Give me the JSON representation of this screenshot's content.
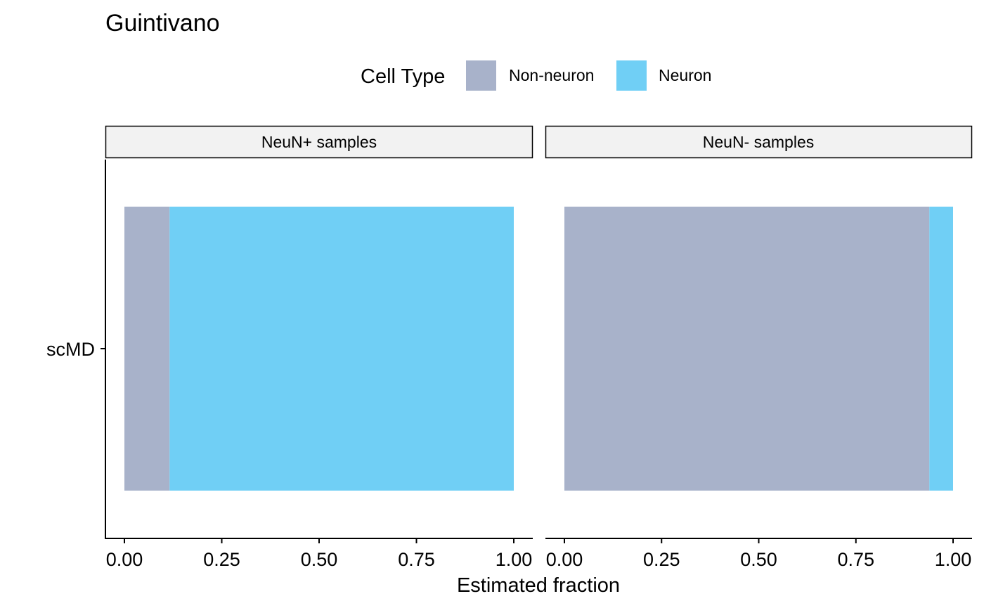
{
  "chart_data": {
    "type": "bar",
    "orientation": "horizontal",
    "stacked": true,
    "title": "Guintivano",
    "xlabel": "Estimated fraction",
    "ylabel": "",
    "xlim": [
      0,
      1
    ],
    "x_ticks": [
      "0.00",
      "0.25",
      "0.50",
      "0.75",
      "1.00"
    ],
    "categories": [
      "scMD"
    ],
    "legend": {
      "title": "Cell Type",
      "position": "top",
      "entries": [
        {
          "name": "Non-neuron",
          "color": "#a8b2ca"
        },
        {
          "name": "Neuron",
          "color": "#70cff5"
        }
      ]
    },
    "grid": false,
    "facets": [
      {
        "label": "NeuN+ samples",
        "series": [
          {
            "name": "Non-neuron",
            "values": [
              0.116
            ]
          },
          {
            "name": "Neuron",
            "values": [
              0.884
            ]
          }
        ]
      },
      {
        "label": "NeuN- samples",
        "series": [
          {
            "name": "Non-neuron",
            "values": [
              0.939
            ]
          },
          {
            "name": "Neuron",
            "values": [
              0.061
            ]
          }
        ]
      }
    ]
  }
}
